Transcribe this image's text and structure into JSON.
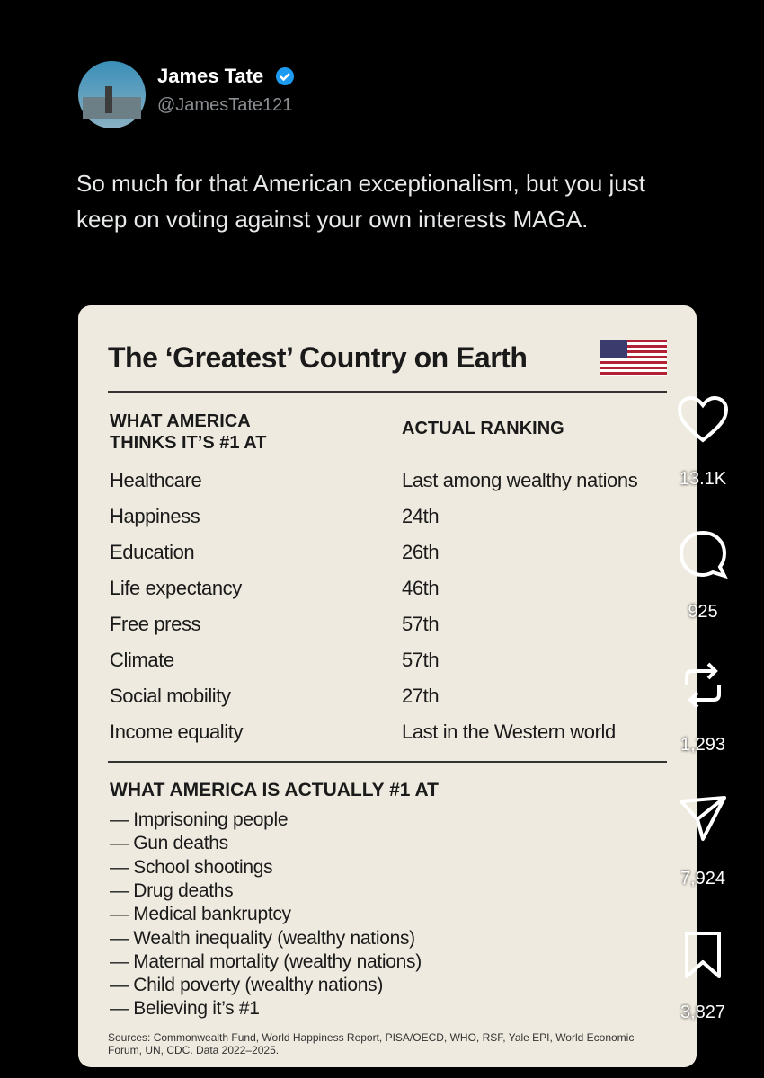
{
  "post": {
    "name": "James Tate",
    "handle": "@JamesTate121",
    "text": "So much for that American exceptionalism, but you just keep on voting against your own interests MAGA."
  },
  "card": {
    "title": "The ‘Greatest’ Country on Earth",
    "header": [
      "WHAT AMERICA THINKS IT’S #1 AT",
      "ACTUAL RANKING"
    ],
    "rows": [
      [
        "Healthcare",
        "Last among wealthy nations"
      ],
      [
        "Happiness",
        "24th"
      ],
      [
        "Education",
        "26th"
      ],
      [
        "Life expectancy",
        "46th"
      ],
      [
        "Free press",
        "57th"
      ],
      [
        "Climate",
        "57th"
      ],
      [
        "Social mobility",
        "27th"
      ],
      [
        "Income equality",
        "Last in the Western world"
      ]
    ],
    "section_title": "WHAT AMERICA IS ACTUALLY #1 AT",
    "items": [
      "— Imprisoning people",
      "— Gun deaths",
      "— School shootings",
      "— Drug deaths",
      "— Medical bankruptcy",
      "— Wealth inequality (wealthy nations)",
      "— Maternal mortality (wealthy nations)",
      "— Child poverty (wealthy nations)",
      "— Believing it’s #1"
    ],
    "sources": "Sources: Commonwealth Fund, World Happiness Report, PISA/OECD, WHO, RSF, Yale EPI, World Economic Forum, UN, CDC. Data 2022–2025."
  },
  "actions": {
    "likes": "13.1K",
    "comments": "925",
    "reposts": "1,293",
    "shares": "7,924",
    "saves": "3,827"
  }
}
